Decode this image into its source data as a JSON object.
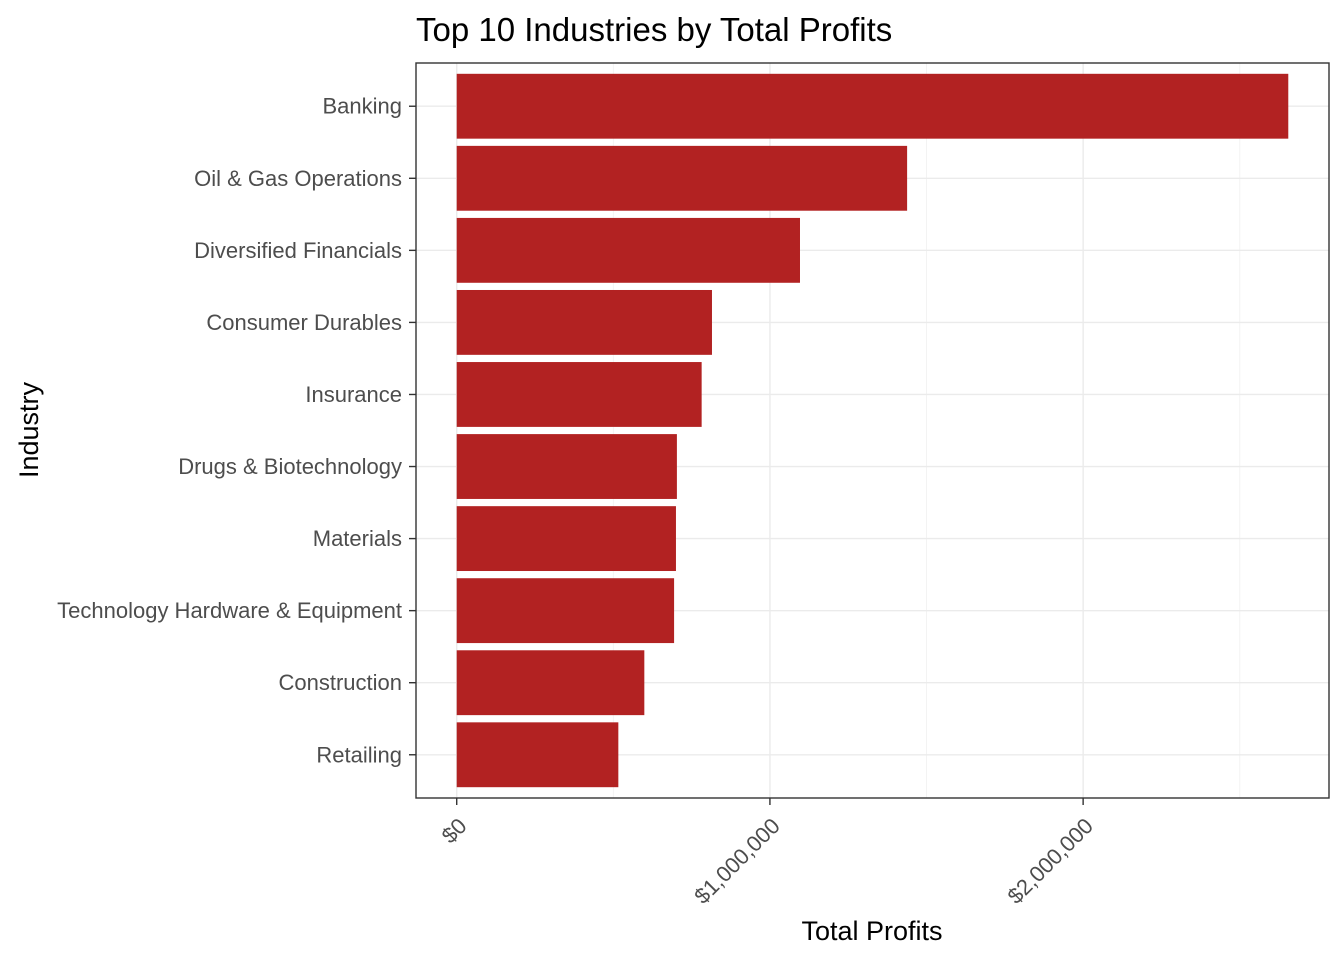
{
  "chart_data": {
    "type": "bar",
    "orientation": "horizontal",
    "title": "Top 10 Industries by Total Profits",
    "xlabel": "Total Profits",
    "ylabel": "Industry",
    "categories": [
      "Banking",
      "Oil & Gas Operations",
      "Diversified Financials",
      "Consumer Durables",
      "Insurance",
      "Drugs & Biotechnology",
      "Materials",
      "Technology Hardware & Equipment",
      "Construction",
      "Retailing"
    ],
    "values": [
      2655000,
      1438000,
      1096000,
      815000,
      782000,
      703000,
      700000,
      694000,
      599000,
      516000
    ],
    "xlim": [
      -130000,
      2785000
    ],
    "x_ticks": [
      0,
      1000000,
      2000000
    ],
    "x_tick_labels": [
      "$0",
      "$1,000,000",
      "$2,000,000"
    ],
    "x_minor_ticks": [
      500000,
      1500000,
      2500000
    ],
    "bar_color": "#b22222",
    "grid": true,
    "theme": "bw"
  }
}
